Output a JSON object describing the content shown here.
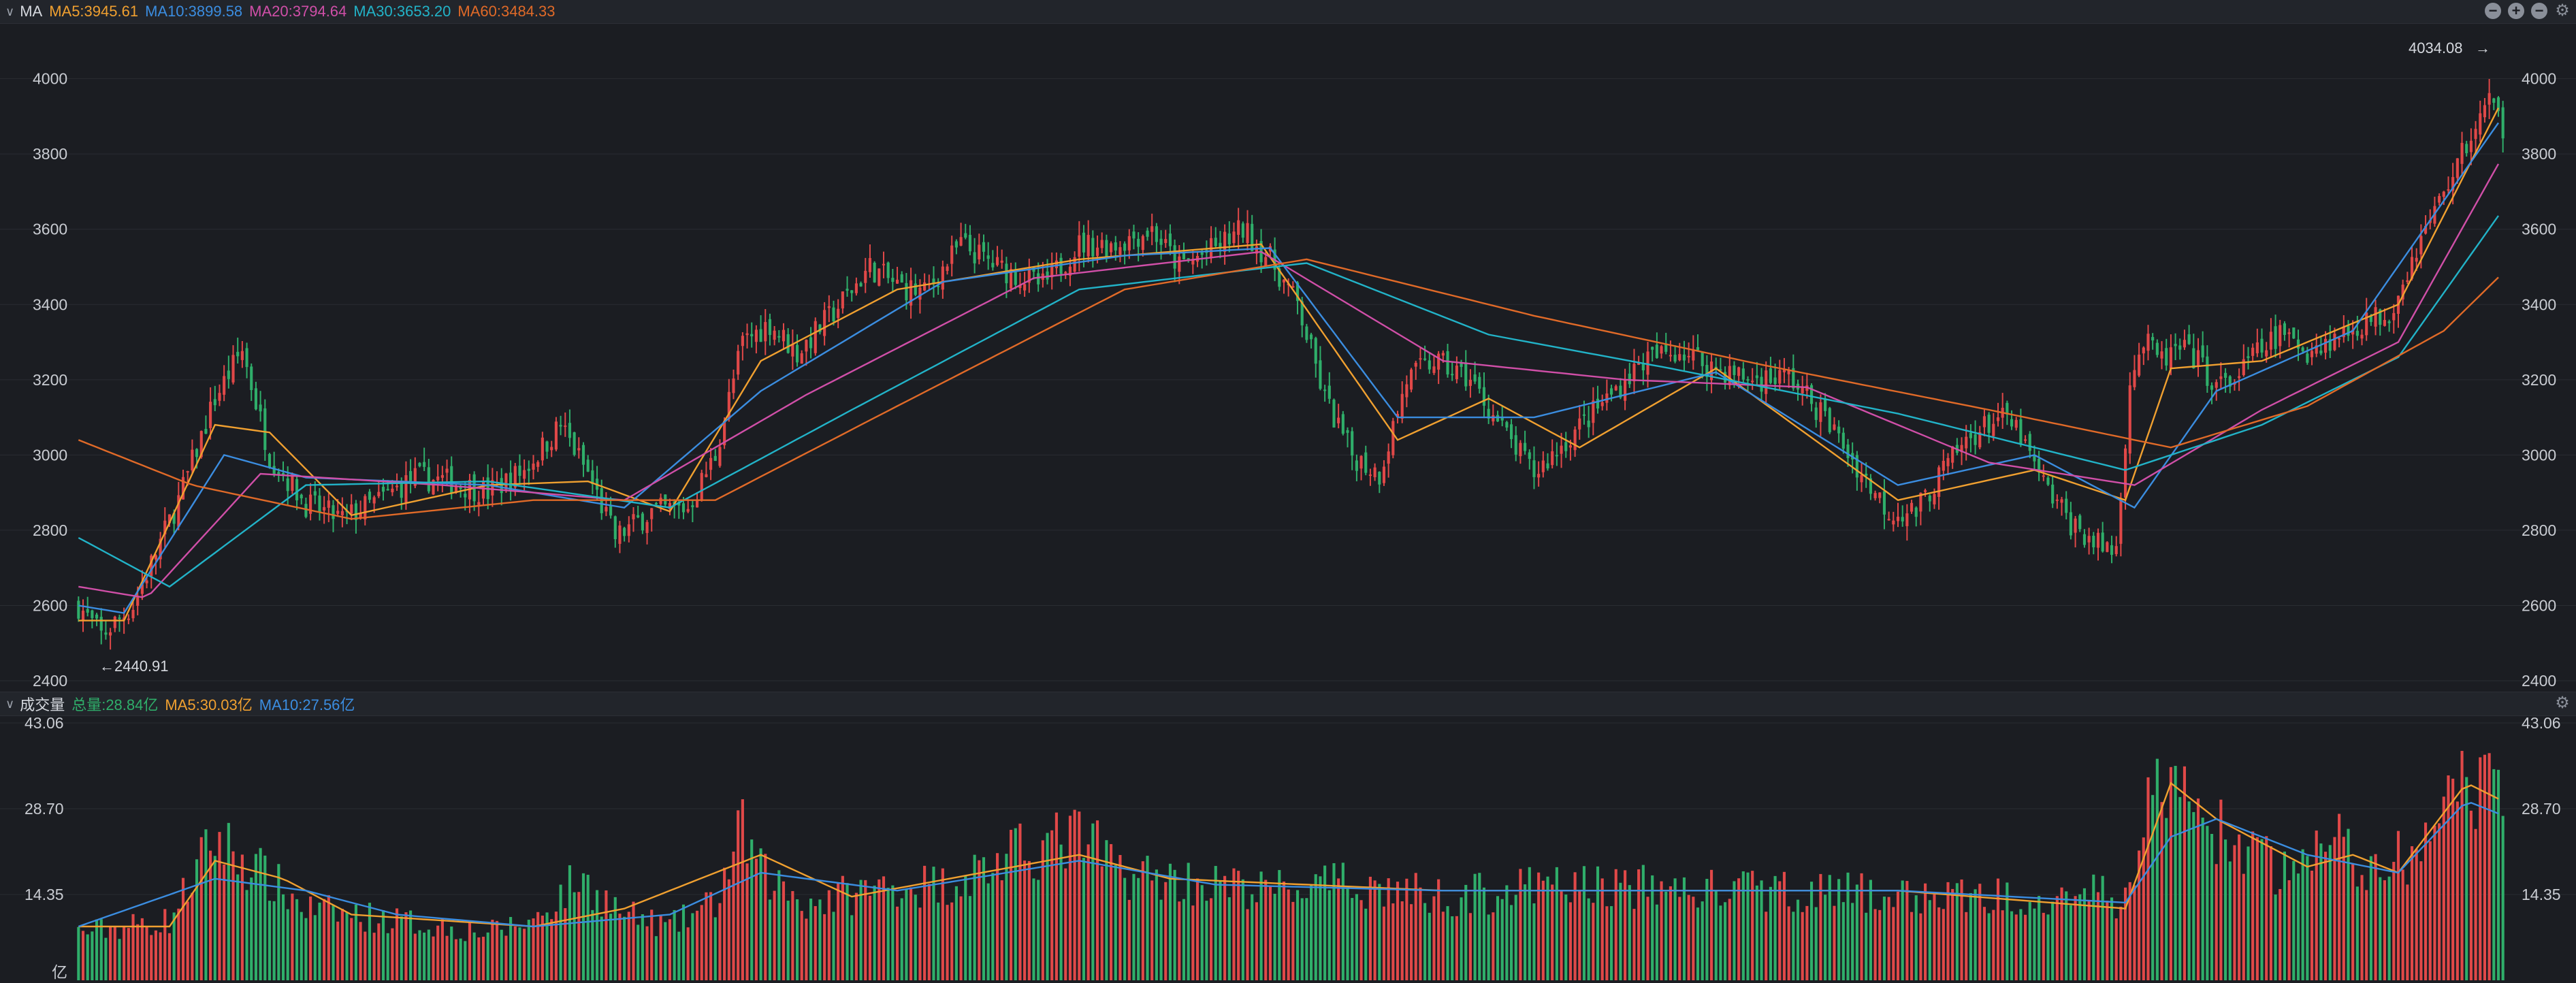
{
  "ma_header": {
    "title": "MA",
    "items": [
      {
        "text": "MA5:3945.61",
        "color": "#f0a030"
      },
      {
        "text": "MA10:3899.58",
        "color": "#3b8de0"
      },
      {
        "text": "MA20:3794.64",
        "color": "#d04fa8"
      },
      {
        "text": "MA30:3653.20",
        "color": "#22b3c8"
      },
      {
        "text": "MA60:3484.33",
        "color": "#e06a28"
      }
    ],
    "icons": [
      "minus-circle-icon",
      "plus-circle-icon",
      "minus-circle-icon",
      "gear-icon"
    ]
  },
  "vol_header": {
    "title": "成交量",
    "items": [
      {
        "text": "总量:28.84亿",
        "color": "#2fae6a"
      },
      {
        "text": "MA5:30.03亿",
        "color": "#f0a030"
      },
      {
        "text": "MA10:27.56亿",
        "color": "#3b8de0"
      }
    ]
  },
  "annotations": {
    "high": "4034.08",
    "low": "2440.91"
  },
  "colors": {
    "up": "#e04848",
    "down": "#2fae6a",
    "grid": "#2a2d33",
    "axis_text": "#c9ccd2"
  },
  "chart_data": [
    {
      "type": "candlestick",
      "ylim": [
        2400,
        4050
      ],
      "yticks": [
        2400,
        2600,
        2800,
        3000,
        3200,
        3400,
        3600,
        3800,
        4000
      ],
      "high_label": 4034.08,
      "low_label": 2440.91,
      "close_path": [
        [
          0,
          2600
        ],
        [
          5,
          2520
        ],
        [
          12,
          2600
        ],
        [
          22,
          2880
        ],
        [
          30,
          3150
        ],
        [
          36,
          3280
        ],
        [
          42,
          3000
        ],
        [
          50,
          2870
        ],
        [
          58,
          2830
        ],
        [
          66,
          2880
        ],
        [
          74,
          2940
        ],
        [
          82,
          2930
        ],
        [
          90,
          2900
        ],
        [
          98,
          2960
        ],
        [
          106,
          3080
        ],
        [
          112,
          2950
        ],
        [
          118,
          2780
        ],
        [
          126,
          2850
        ],
        [
          134,
          2860
        ],
        [
          140,
          3000
        ],
        [
          146,
          3300
        ],
        [
          152,
          3350
        ],
        [
          158,
          3270
        ],
        [
          166,
          3380
        ],
        [
          174,
          3500
        ],
        [
          180,
          3450
        ],
        [
          186,
          3430
        ],
        [
          194,
          3560
        ],
        [
          202,
          3500
        ],
        [
          212,
          3450
        ],
        [
          220,
          3560
        ],
        [
          228,
          3560
        ],
        [
          236,
          3600
        ],
        [
          242,
          3500
        ],
        [
          250,
          3550
        ],
        [
          256,
          3600
        ],
        [
          262,
          3520
        ],
        [
          268,
          3400
        ],
        [
          274,
          3150
        ],
        [
          280,
          3000
        ],
        [
          286,
          2950
        ],
        [
          292,
          3200
        ],
        [
          298,
          3250
        ],
        [
          306,
          3200
        ],
        [
          314,
          3050
        ],
        [
          320,
          2950
        ],
        [
          328,
          3050
        ],
        [
          336,
          3150
        ],
        [
          344,
          3250
        ],
        [
          352,
          3280
        ],
        [
          360,
          3230
        ],
        [
          368,
          3200
        ],
        [
          376,
          3210
        ],
        [
          384,
          3100
        ],
        [
          392,
          2950
        ],
        [
          398,
          2850
        ],
        [
          404,
          2850
        ],
        [
          410,
          2960
        ],
        [
          416,
          3050
        ],
        [
          422,
          3100
        ],
        [
          426,
          3070
        ],
        [
          432,
          2920
        ],
        [
          438,
          2820
        ],
        [
          444,
          2760
        ],
        [
          448,
          2750
        ],
        [
          451,
          3200
        ],
        [
          454,
          3300
        ],
        [
          458,
          3250
        ],
        [
          462,
          3280
        ],
        [
          466,
          3250
        ],
        [
          470,
          3180
        ],
        [
          474,
          3200
        ],
        [
          478,
          3260
        ],
        [
          484,
          3320
        ],
        [
          490,
          3280
        ],
        [
          496,
          3310
        ],
        [
          502,
          3350
        ],
        [
          508,
          3380
        ],
        [
          514,
          3550
        ],
        [
          520,
          3700
        ],
        [
          526,
          3850
        ],
        [
          530,
          3940
        ],
        [
          533,
          3870
        ]
      ],
      "ma_path": {
        "MA5": [
          [
            0,
            2560
          ],
          [
            10,
            2560
          ],
          [
            30,
            3080
          ],
          [
            42,
            3060
          ],
          [
            60,
            2840
          ],
          [
            90,
            2920
          ],
          [
            112,
            2930
          ],
          [
            130,
            2850
          ],
          [
            150,
            3250
          ],
          [
            180,
            3440
          ],
          [
            220,
            3520
          ],
          [
            260,
            3560
          ],
          [
            290,
            3040
          ],
          [
            310,
            3150
          ],
          [
            330,
            3020
          ],
          [
            360,
            3230
          ],
          [
            400,
            2880
          ],
          [
            430,
            2960
          ],
          [
            450,
            2880
          ],
          [
            460,
            3230
          ],
          [
            480,
            3250
          ],
          [
            510,
            3400
          ],
          [
            533,
            3946
          ]
        ],
        "MA10": [
          [
            0,
            2600
          ],
          [
            10,
            2580
          ],
          [
            32,
            3000
          ],
          [
            50,
            2940
          ],
          [
            90,
            2920
          ],
          [
            120,
            2860
          ],
          [
            150,
            3170
          ],
          [
            190,
            3460
          ],
          [
            230,
            3530
          ],
          [
            262,
            3550
          ],
          [
            290,
            3100
          ],
          [
            320,
            3100
          ],
          [
            360,
            3220
          ],
          [
            400,
            2920
          ],
          [
            430,
            3000
          ],
          [
            452,
            2860
          ],
          [
            470,
            3170
          ],
          [
            500,
            3330
          ],
          [
            533,
            3900
          ]
        ],
        "MA20": [
          [
            0,
            2650
          ],
          [
            15,
            2620
          ],
          [
            40,
            2950
          ],
          [
            80,
            2920
          ],
          [
            120,
            2880
          ],
          [
            160,
            3160
          ],
          [
            210,
            3470
          ],
          [
            260,
            3540
          ],
          [
            300,
            3250
          ],
          [
            340,
            3200
          ],
          [
            380,
            3180
          ],
          [
            420,
            2980
          ],
          [
            452,
            2920
          ],
          [
            480,
            3120
          ],
          [
            510,
            3300
          ],
          [
            533,
            3795
          ]
        ],
        "MA30": [
          [
            0,
            2780
          ],
          [
            20,
            2650
          ],
          [
            50,
            2920
          ],
          [
            90,
            2930
          ],
          [
            130,
            2860
          ],
          [
            170,
            3120
          ],
          [
            220,
            3440
          ],
          [
            270,
            3510
          ],
          [
            310,
            3320
          ],
          [
            350,
            3230
          ],
          [
            400,
            3110
          ],
          [
            450,
            2960
          ],
          [
            480,
            3080
          ],
          [
            510,
            3260
          ],
          [
            533,
            3653
          ]
        ],
        "MA60": [
          [
            0,
            3040
          ],
          [
            25,
            2920
          ],
          [
            60,
            2830
          ],
          [
            100,
            2880
          ],
          [
            140,
            2880
          ],
          [
            180,
            3130
          ],
          [
            230,
            3440
          ],
          [
            270,
            3520
          ],
          [
            320,
            3370
          ],
          [
            370,
            3240
          ],
          [
            420,
            3120
          ],
          [
            460,
            3020
          ],
          [
            490,
            3130
          ],
          [
            520,
            3330
          ],
          [
            533,
            3484
          ]
        ]
      }
    },
    {
      "type": "bar",
      "ylim": [
        0,
        43.06
      ],
      "yticks": [
        14.35,
        28.7,
        43.06
      ],
      "unit": "亿",
      "volume_path": [
        [
          0,
          8
        ],
        [
          20,
          10
        ],
        [
          30,
          24
        ],
        [
          40,
          18
        ],
        [
          50,
          12
        ],
        [
          70,
          10
        ],
        [
          90,
          8
        ],
        [
          100,
          10
        ],
        [
          110,
          17
        ],
        [
          120,
          11
        ],
        [
          130,
          9
        ],
        [
          140,
          13
        ],
        [
          146,
          25
        ],
        [
          150,
          18
        ],
        [
          160,
          13
        ],
        [
          180,
          16
        ],
        [
          190,
          16
        ],
        [
          210,
          22
        ],
        [
          220,
          24
        ],
        [
          230,
          18
        ],
        [
          240,
          17
        ],
        [
          260,
          15
        ],
        [
          280,
          16
        ],
        [
          300,
          14
        ],
        [
          330,
          16
        ],
        [
          360,
          15
        ],
        [
          380,
          15
        ],
        [
          400,
          14
        ],
        [
          420,
          14
        ],
        [
          440,
          15
        ],
        [
          450,
          13
        ],
        [
          455,
          30
        ],
        [
          460,
          33
        ],
        [
          466,
          28
        ],
        [
          475,
          22
        ],
        [
          485,
          18
        ],
        [
          495,
          24
        ],
        [
          505,
          18
        ],
        [
          515,
          22
        ],
        [
          525,
          32
        ],
        [
          533,
          30
        ]
      ],
      "vol_ma": {
        "MA5": [
          [
            0,
            9
          ],
          [
            20,
            9
          ],
          [
            30,
            20
          ],
          [
            45,
            17
          ],
          [
            60,
            11
          ],
          [
            100,
            9
          ],
          [
            120,
            12
          ],
          [
            150,
            21
          ],
          [
            170,
            14
          ],
          [
            220,
            21
          ],
          [
            240,
            17
          ],
          [
            300,
            15
          ],
          [
            400,
            15
          ],
          [
            450,
            12
          ],
          [
            460,
            33
          ],
          [
            470,
            27
          ],
          [
            490,
            19
          ],
          [
            500,
            21
          ],
          [
            510,
            18
          ],
          [
            525,
            33
          ],
          [
            533,
            30
          ]
        ],
        "MA10": [
          [
            0,
            9
          ],
          [
            30,
            17
          ],
          [
            50,
            15
          ],
          [
            70,
            11
          ],
          [
            100,
            9
          ],
          [
            130,
            11
          ],
          [
            150,
            18
          ],
          [
            180,
            15
          ],
          [
            220,
            20
          ],
          [
            250,
            16
          ],
          [
            300,
            15
          ],
          [
            400,
            15
          ],
          [
            450,
            13
          ],
          [
            460,
            24
          ],
          [
            470,
            27
          ],
          [
            490,
            21
          ],
          [
            510,
            18
          ],
          [
            525,
            30
          ],
          [
            533,
            27.6
          ]
        ]
      }
    }
  ]
}
